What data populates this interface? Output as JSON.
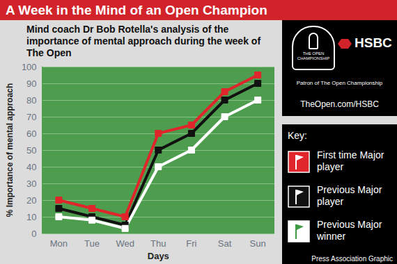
{
  "chart_data": {
    "type": "line",
    "title": "A Week in the Mind of an Open Champion",
    "subtitle": "Mind coach Dr Bob Rotella's analysis of the importance of mental approach during the week of The Open",
    "xlabel": "Days",
    "ylabel": "% Importance of mental approach",
    "categories": [
      "Mon",
      "Tue",
      "Wed",
      "Thu",
      "Fri",
      "Sat",
      "Sun"
    ],
    "series": [
      {
        "name": "First time Major player",
        "color": "#e0252b",
        "values": [
          20,
          15,
          10,
          60,
          65,
          85,
          95
        ]
      },
      {
        "name": "Previous Major player",
        "color": "#111111",
        "values": [
          15,
          10,
          5,
          50,
          60,
          80,
          90
        ]
      },
      {
        "name": "Previous Major winner",
        "color": "#ffffff",
        "values": [
          10,
          8,
          3,
          40,
          50,
          70,
          80
        ]
      }
    ],
    "ylim": [
      0,
      100
    ],
    "yticks": [
      0,
      10,
      20,
      30,
      40,
      50,
      60,
      70,
      80,
      90,
      100
    ],
    "grid": true,
    "marker": "square",
    "legend": "right",
    "legend_title": "Key:",
    "annotations": {
      "logo": "THE OPEN CHAMPIONSHIP",
      "sponsor": "HSBC",
      "patron": "Patron of The Open Championship",
      "url": "TheOpen.com/HSBC",
      "credit": "Press Association Graphic"
    }
  }
}
